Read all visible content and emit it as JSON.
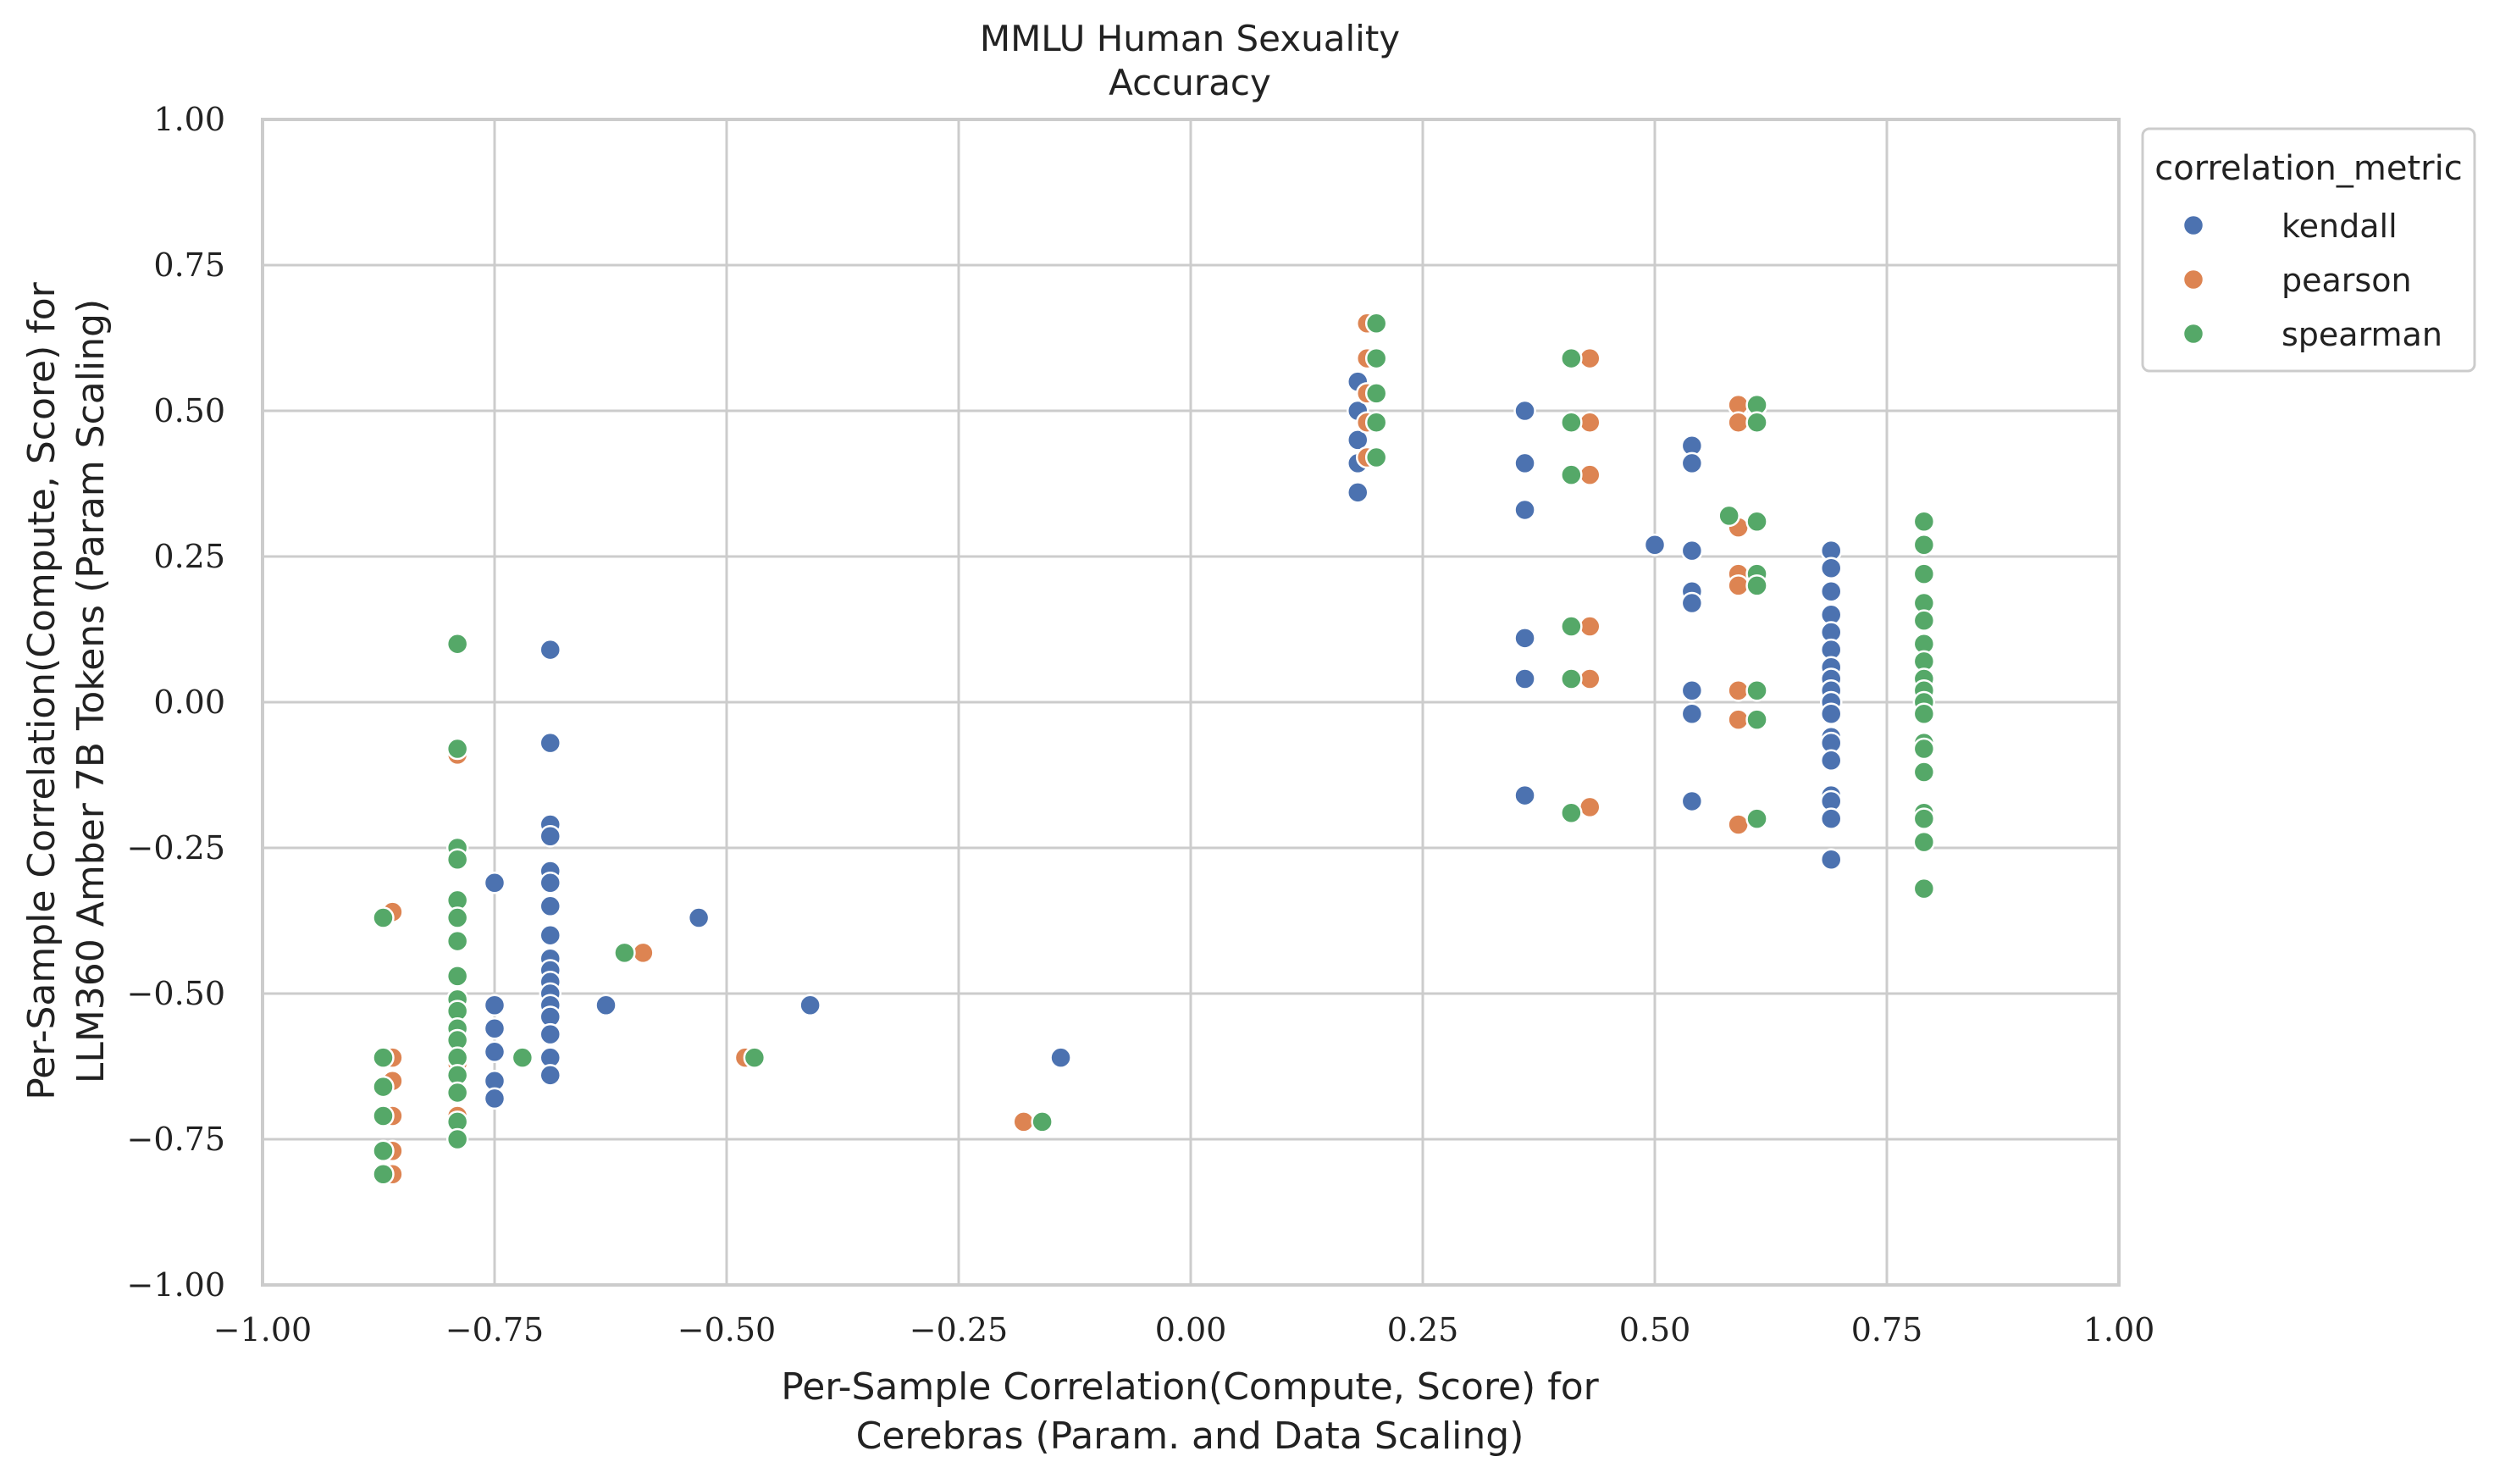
{
  "chart_data": {
    "type": "scatter",
    "title": "MMLU Human Sexuality",
    "subtitle": "Accuracy",
    "xlabel": [
      "Per-Sample Correlation(Compute, Score) for",
      "Cerebras (Param. and Data Scaling)"
    ],
    "ylabel": [
      "Per-Sample Correlation(Compute, Score) for",
      "LLM360 Amber 7B Tokens (Param Scaling)"
    ],
    "xlim": [
      -1.0,
      1.0
    ],
    "ylim": [
      -1.0,
      1.0
    ],
    "xticks": [
      "−1.00",
      "−0.75",
      "−0.50",
      "−0.25",
      "0.00",
      "0.25",
      "0.50",
      "0.75",
      "1.00"
    ],
    "yticks": [
      "−1.00",
      "−0.75",
      "−0.50",
      "−0.25",
      "0.00",
      "0.25",
      "0.50",
      "0.75",
      "1.00"
    ],
    "xtick_values": [
      -1.0,
      -0.75,
      -0.5,
      -0.25,
      0.0,
      0.25,
      0.5,
      0.75,
      1.0
    ],
    "ytick_values": [
      -1.0,
      -0.75,
      -0.5,
      -0.25,
      0.0,
      0.25,
      0.5,
      0.75,
      1.0
    ],
    "grid": true,
    "legend": {
      "title": "correlation_metric",
      "placement": "outside-top-right"
    },
    "series": [
      {
        "name": "kendall",
        "color": "#4c72b0",
        "points": [
          [
            -0.75,
            -0.31
          ],
          [
            -0.75,
            -0.52
          ],
          [
            -0.75,
            -0.56
          ],
          [
            -0.75,
            -0.6
          ],
          [
            -0.75,
            -0.65
          ],
          [
            -0.75,
            -0.68
          ],
          [
            -0.69,
            0.09
          ],
          [
            -0.69,
            -0.07
          ],
          [
            -0.69,
            -0.21
          ],
          [
            -0.69,
            -0.23
          ],
          [
            -0.69,
            -0.29
          ],
          [
            -0.69,
            -0.31
          ],
          [
            -0.69,
            -0.35
          ],
          [
            -0.69,
            -0.4
          ],
          [
            -0.69,
            -0.44
          ],
          [
            -0.69,
            -0.46
          ],
          [
            -0.69,
            -0.48
          ],
          [
            -0.69,
            -0.5
          ],
          [
            -0.69,
            -0.52
          ],
          [
            -0.69,
            -0.54
          ],
          [
            -0.69,
            -0.57
          ],
          [
            -0.69,
            -0.61
          ],
          [
            -0.69,
            -0.64
          ],
          [
            -0.63,
            -0.52
          ],
          [
            -0.53,
            -0.37
          ],
          [
            -0.41,
            -0.52
          ],
          [
            -0.14,
            -0.61
          ],
          [
            0.18,
            0.55
          ],
          [
            0.18,
            0.5
          ],
          [
            0.18,
            0.45
          ],
          [
            0.18,
            0.41
          ],
          [
            0.18,
            0.36
          ],
          [
            0.36,
            0.5
          ],
          [
            0.36,
            0.41
          ],
          [
            0.36,
            0.33
          ],
          [
            0.36,
            0.11
          ],
          [
            0.36,
            0.04
          ],
          [
            0.36,
            -0.16
          ],
          [
            0.5,
            0.27
          ],
          [
            0.54,
            0.44
          ],
          [
            0.54,
            0.41
          ],
          [
            0.54,
            0.26
          ],
          [
            0.54,
            0.19
          ],
          [
            0.54,
            0.17
          ],
          [
            0.54,
            0.02
          ],
          [
            0.54,
            -0.02
          ],
          [
            0.54,
            -0.17
          ],
          [
            0.69,
            0.26
          ],
          [
            0.69,
            0.23
          ],
          [
            0.69,
            0.19
          ],
          [
            0.69,
            0.15
          ],
          [
            0.69,
            0.12
          ],
          [
            0.69,
            0.09
          ],
          [
            0.69,
            0.06
          ],
          [
            0.69,
            0.04
          ],
          [
            0.69,
            0.02
          ],
          [
            0.69,
            0.0
          ],
          [
            0.69,
            -0.02
          ],
          [
            0.69,
            -0.06
          ],
          [
            0.69,
            -0.07
          ],
          [
            0.69,
            -0.1
          ],
          [
            0.69,
            -0.16
          ],
          [
            0.69,
            -0.17
          ],
          [
            0.69,
            -0.2
          ],
          [
            0.69,
            -0.27
          ]
        ]
      },
      {
        "name": "pearson",
        "color": "#dd8452",
        "points": [
          [
            -0.86,
            -0.36
          ],
          [
            -0.86,
            -0.61
          ],
          [
            -0.86,
            -0.65
          ],
          [
            -0.86,
            -0.71
          ],
          [
            -0.86,
            -0.77
          ],
          [
            -0.86,
            -0.81
          ],
          [
            -0.79,
            0.1
          ],
          [
            -0.79,
            -0.09
          ],
          [
            -0.79,
            -0.34
          ],
          [
            -0.79,
            -0.47
          ],
          [
            -0.79,
            -0.56
          ],
          [
            -0.79,
            -0.62
          ],
          [
            -0.79,
            -0.71
          ],
          [
            -0.59,
            -0.43
          ],
          [
            -0.48,
            -0.61
          ],
          [
            -0.18,
            -0.72
          ],
          [
            0.19,
            0.65
          ],
          [
            0.19,
            0.59
          ],
          [
            0.19,
            0.53
          ],
          [
            0.19,
            0.48
          ],
          [
            0.19,
            0.42
          ],
          [
            0.43,
            0.59
          ],
          [
            0.43,
            0.48
          ],
          [
            0.43,
            0.39
          ],
          [
            0.43,
            0.13
          ],
          [
            0.43,
            0.04
          ],
          [
            0.43,
            -0.18
          ],
          [
            0.59,
            0.51
          ],
          [
            0.59,
            0.48
          ],
          [
            0.59,
            0.3
          ],
          [
            0.59,
            0.22
          ],
          [
            0.59,
            0.2
          ],
          [
            0.59,
            0.02
          ],
          [
            0.59,
            -0.03
          ],
          [
            0.59,
            -0.21
          ],
          [
            0.79,
            0.14
          ],
          [
            0.79,
            -0.24
          ],
          [
            0.79,
            -0.32
          ]
        ]
      },
      {
        "name": "spearman",
        "color": "#55a868",
        "points": [
          [
            -0.87,
            -0.37
          ],
          [
            -0.87,
            -0.61
          ],
          [
            -0.87,
            -0.66
          ],
          [
            -0.87,
            -0.71
          ],
          [
            -0.87,
            -0.77
          ],
          [
            -0.87,
            -0.81
          ],
          [
            -0.79,
            0.1
          ],
          [
            -0.79,
            -0.08
          ],
          [
            -0.79,
            -0.25
          ],
          [
            -0.79,
            -0.27
          ],
          [
            -0.79,
            -0.34
          ],
          [
            -0.79,
            -0.37
          ],
          [
            -0.79,
            -0.41
          ],
          [
            -0.79,
            -0.47
          ],
          [
            -0.79,
            -0.51
          ],
          [
            -0.79,
            -0.53
          ],
          [
            -0.79,
            -0.56
          ],
          [
            -0.79,
            -0.58
          ],
          [
            -0.79,
            -0.61
          ],
          [
            -0.79,
            -0.64
          ],
          [
            -0.79,
            -0.67
          ],
          [
            -0.79,
            -0.72
          ],
          [
            -0.79,
            -0.75
          ],
          [
            -0.72,
            -0.61
          ],
          [
            -0.61,
            -0.43
          ],
          [
            -0.47,
            -0.61
          ],
          [
            -0.16,
            -0.72
          ],
          [
            0.2,
            0.65
          ],
          [
            0.2,
            0.59
          ],
          [
            0.2,
            0.53
          ],
          [
            0.2,
            0.48
          ],
          [
            0.2,
            0.42
          ],
          [
            0.41,
            0.59
          ],
          [
            0.41,
            0.48
          ],
          [
            0.41,
            0.39
          ],
          [
            0.41,
            0.13
          ],
          [
            0.41,
            0.04
          ],
          [
            0.41,
            -0.19
          ],
          [
            0.58,
            0.32
          ],
          [
            0.61,
            0.51
          ],
          [
            0.61,
            0.48
          ],
          [
            0.61,
            0.31
          ],
          [
            0.61,
            0.22
          ],
          [
            0.61,
            0.2
          ],
          [
            0.61,
            0.02
          ],
          [
            0.61,
            -0.03
          ],
          [
            0.61,
            -0.2
          ],
          [
            0.79,
            0.31
          ],
          [
            0.79,
            0.27
          ],
          [
            0.79,
            0.22
          ],
          [
            0.79,
            0.17
          ],
          [
            0.79,
            0.14
          ],
          [
            0.79,
            0.1
          ],
          [
            0.79,
            0.07
          ],
          [
            0.79,
            0.04
          ],
          [
            0.79,
            0.02
          ],
          [
            0.79,
            0.0
          ],
          [
            0.79,
            -0.02
          ],
          [
            0.79,
            -0.07
          ],
          [
            0.79,
            -0.08
          ],
          [
            0.79,
            -0.12
          ],
          [
            0.79,
            -0.19
          ],
          [
            0.79,
            -0.2
          ],
          [
            0.79,
            -0.24
          ],
          [
            0.79,
            -0.32
          ]
        ]
      }
    ]
  }
}
